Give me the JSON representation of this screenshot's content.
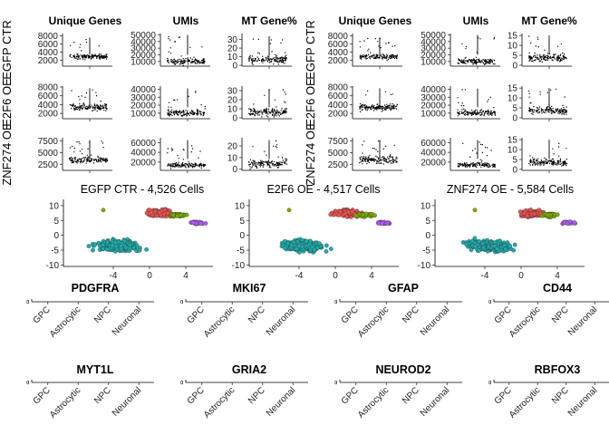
{
  "chart_data": [
    {
      "type": "scatter",
      "kind": "qc-jitter-grid",
      "column_titles": [
        "Unique Genes",
        "UMIs",
        "MT Gene%"
      ],
      "row_labels_left": [
        "EGFP CTR",
        "E2F6 OE",
        "ZNF274 OE"
      ],
      "row_labels_right": [
        "EGFP CTR",
        "E2F6 OE",
        "ZNF274 OE"
      ],
      "panels_left": [
        [
          {
            "ticks": [
              2000,
              4000,
              6000,
              8000
            ],
            "ylim": [
              500,
              8600
            ],
            "center": 3000,
            "spread": 1000,
            "outlier": 7600
          },
          {
            "ticks": [
              10000,
              20000,
              30000,
              40000,
              50000
            ],
            "ylim": [
              3000,
              52000
            ],
            "center": 11000,
            "spread": 7000,
            "outlier": 50000
          },
          {
            "ticks": [
              0,
              10,
              20,
              30
            ],
            "ylim": [
              -1,
              37
            ],
            "center": 7,
            "spread": 8,
            "outlier": 34
          }
        ],
        [
          {
            "ticks": [
              2000,
              4000,
              6000,
              8000
            ],
            "ylim": [
              800,
              8200
            ],
            "center": 3500,
            "spread": 1200,
            "outlier": 7700
          },
          {
            "ticks": [
              10000,
              20000,
              30000,
              40000
            ],
            "ylim": [
              3000,
              44000
            ],
            "center": 11000,
            "spread": 6000,
            "outlier": 41000
          },
          {
            "ticks": [
              0,
              10,
              20,
              30
            ],
            "ylim": [
              -1,
              35
            ],
            "center": 7,
            "spread": 7,
            "outlier": 32
          }
        ],
        [
          {
            "ticks": [
              2500,
              5000,
              7500
            ],
            "ylim": [
              1200,
              8200
            ],
            "center": 3600,
            "spread": 1200,
            "outlier": 7700
          },
          {
            "ticks": [
              20000,
              40000,
              60000
            ],
            "ylim": [
              3000,
              70000
            ],
            "center": 15000,
            "spread": 8000,
            "outlier": 65000
          },
          {
            "ticks": [
              0,
              10,
              20
            ],
            "ylim": [
              -1,
              27
            ],
            "center": 5,
            "spread": 6,
            "outlier": 25
          }
        ]
      ],
      "panels_right": [
        [
          {
            "ticks": [
              2000,
              4000,
              6000,
              8000
            ],
            "ylim": [
              500,
              8600
            ],
            "center": 3000,
            "spread": 1000,
            "outlier": 7600
          },
          {
            "ticks": [
              10000,
              20000,
              30000,
              40000,
              50000
            ],
            "ylim": [
              3000,
              52000
            ],
            "center": 11000,
            "spread": 7000,
            "outlier": 50000
          },
          {
            "ticks": [
              0,
              5,
              10,
              15
            ],
            "ylim": [
              -0.5,
              16
            ],
            "center": 4,
            "spread": 3,
            "outlier": 15
          }
        ],
        [
          {
            "ticks": [
              2000,
              4000,
              6000,
              8000
            ],
            "ylim": [
              800,
              8200
            ],
            "center": 3500,
            "spread": 1200,
            "outlier": 7700
          },
          {
            "ticks": [
              10000,
              20000,
              30000,
              40000
            ],
            "ylim": [
              3000,
              44000
            ],
            "center": 11000,
            "spread": 6000,
            "outlier": 41000
          },
          {
            "ticks": [
              0,
              5,
              10,
              15
            ],
            "ylim": [
              -0.5,
              16
            ],
            "center": 4,
            "spread": 3,
            "outlier": 15
          }
        ],
        [
          {
            "ticks": [
              2500,
              5000,
              7500
            ],
            "ylim": [
              1200,
              8200
            ],
            "center": 3600,
            "spread": 1200,
            "outlier": 7700
          },
          {
            "ticks": [
              20000,
              40000,
              60000
            ],
            "ylim": [
              3000,
              70000
            ],
            "center": 15000,
            "spread": 8000,
            "outlier": 65000
          },
          {
            "ticks": [
              0,
              5,
              10,
              15
            ],
            "ylim": [
              -0.5,
              16
            ],
            "center": 4,
            "spread": 3,
            "outlier": 15
          }
        ]
      ]
    },
    {
      "type": "scatter",
      "kind": "umap",
      "titles": [
        "EGFP CTR - 4,526 Cells",
        "E2F6 OE - 4,517 Cells",
        "ZNF274 OE - 5,584 Cells"
      ],
      "xlim": [
        -9.5,
        7
      ],
      "ylim": [
        -10.5,
        11.5
      ],
      "xticks": [
        -4,
        0,
        4
      ],
      "yticks": [
        -10,
        -5,
        0,
        5,
        10
      ],
      "clusters": [
        {
          "color": "#1fa9a9",
          "cx": -3.5,
          "cy": -3.5,
          "rx": 4.2,
          "ry": 3.3,
          "n": 260
        },
        {
          "color": "#e8524f",
          "cx": 1.2,
          "cy": 7.5,
          "rx": 2.6,
          "ry": 2.2,
          "n": 120
        },
        {
          "color": "#7aab00",
          "cx": 3.2,
          "cy": 6.8,
          "rx": 1.6,
          "ry": 1.0,
          "n": 45
        },
        {
          "color": "#b05cf0",
          "cx": 5.3,
          "cy": 4.2,
          "rx": 1.3,
          "ry": 0.7,
          "n": 30
        }
      ]
    },
    {
      "type": "bar",
      "kind": "gene-expression",
      "genes": [
        "PDGFRA",
        "MKI67",
        "GFAP",
        "CD44",
        "MYT1L",
        "GRIA2",
        "NEUROD2",
        "RBFOX3"
      ],
      "categories": [
        "GPC",
        "Astrocytic",
        "NPC",
        "Neuronal"
      ],
      "values": [
        0,
        0,
        0,
        0
      ]
    }
  ]
}
